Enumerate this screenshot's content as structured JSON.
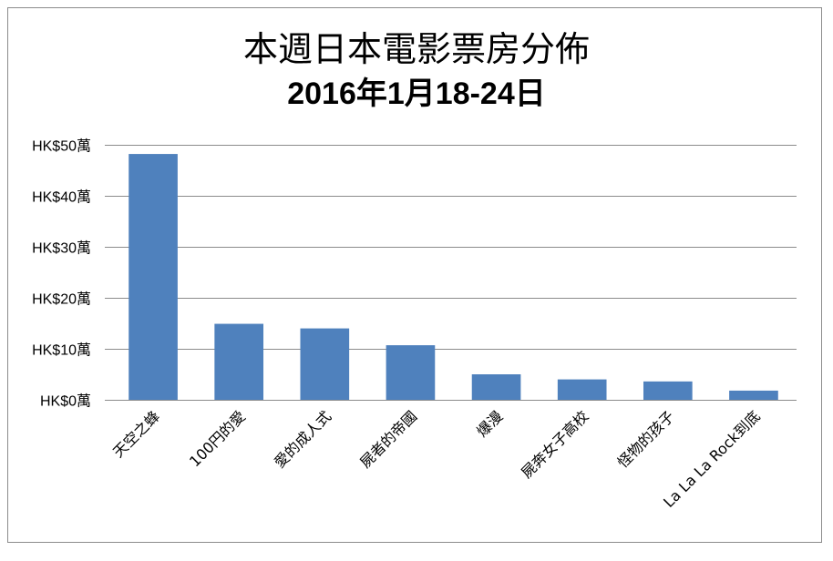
{
  "chart_data": {
    "type": "bar",
    "title": "本週日本電影票房分佈",
    "subtitle": "2016年1月18-24日",
    "categories": [
      "天空之蜂",
      "100円的愛",
      "愛的成人式",
      "屍者的帝國",
      "爆漫",
      "屍奔女子高校",
      "怪物的孩子",
      "La La La Rock到底"
    ],
    "values": [
      48.2,
      14.9,
      14.0,
      10.7,
      5.0,
      4.0,
      3.6,
      1.8
    ],
    "ylim": [
      0,
      50
    ],
    "yticks": [
      0,
      10,
      20,
      30,
      40,
      50
    ],
    "ytick_labels": [
      "HK$0萬",
      "HK$10萬",
      "HK$20萬",
      "HK$30萬",
      "HK$40萬",
      "HK$50萬"
    ],
    "xlabel": "",
    "ylabel": "",
    "grid": true,
    "legend": "none",
    "bar_color": "#4f81bd",
    "grid_color": "#8c8c8c"
  }
}
